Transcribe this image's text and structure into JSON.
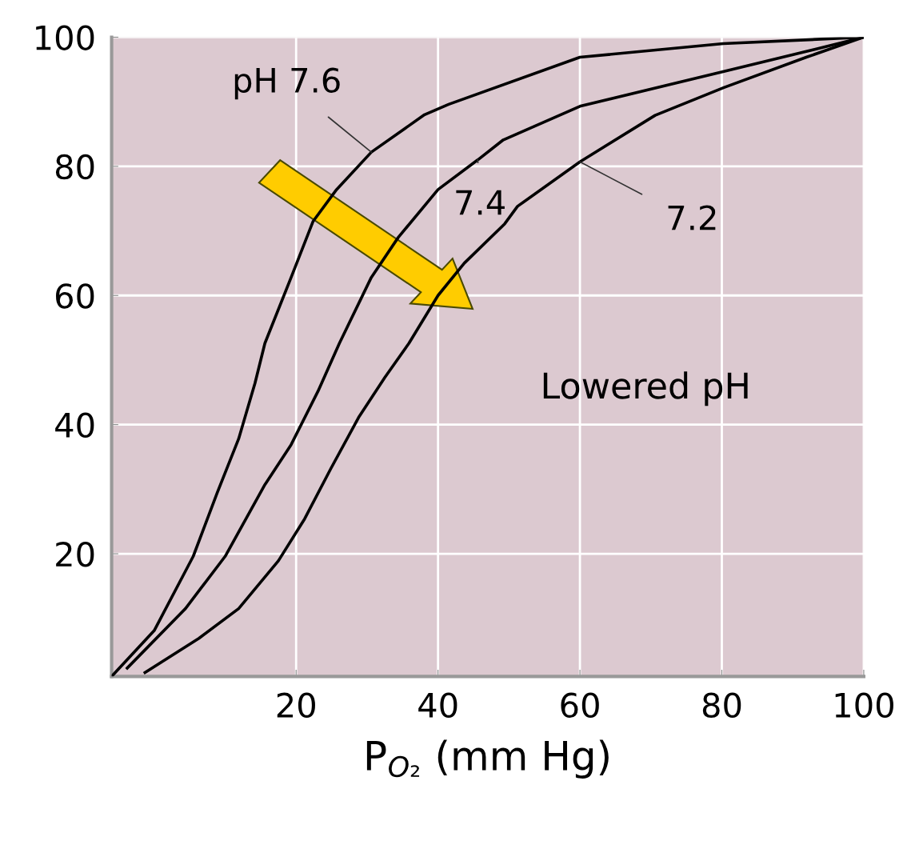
{
  "chart_data": {
    "type": "line",
    "xlabel": "P$_{O₂}$ (mm Hg)",
    "xlim": [
      -6,
      100
    ],
    "ylim": [
      1,
      100
    ],
    "xticks": [
      20,
      40,
      60,
      80,
      100
    ],
    "yticks": [
      20,
      40,
      60,
      80,
      100
    ],
    "grid": true,
    "legend": false,
    "marker": "none",
    "line_style": "solid",
    "annotations": [
      "Lowered pH"
    ],
    "series": [
      {
        "name": "pH 7.6",
        "color": "#000000",
        "x": [
          -6,
          0,
          5.5,
          8.9,
          11.9,
          14.2,
          15.6,
          19.3,
          22.4,
          25.7,
          30.6,
          38.1,
          41.5,
          60,
          80.2,
          100
        ],
        "values": [
          1,
          8.1,
          19.6,
          29.5,
          37.8,
          46.4,
          52.6,
          62.8,
          71.5,
          76.4,
          82.2,
          88.0,
          89.6,
          96.9,
          99.0,
          100
        ]
      },
      {
        "name": "7.4",
        "color": "#000000",
        "x": [
          -3.8,
          4.4,
          10.0,
          15.6,
          19.3,
          23.1,
          26.1,
          30.6,
          34.4,
          40.0,
          45.6,
          49.2,
          60.0,
          80.3,
          91.9,
          100
        ],
        "values": [
          2.3,
          11.5,
          19.6,
          30.7,
          36.9,
          45.2,
          52.6,
          62.8,
          69.0,
          76.4,
          81.0,
          84.1,
          89.3,
          94.7,
          97.8,
          100
        ]
      },
      {
        "name": "7.2",
        "color": "#000000",
        "x": [
          -1.3,
          6.3,
          11.9,
          17.5,
          21.2,
          24.9,
          28.8,
          32.5,
          35.9,
          40.0,
          43.7,
          49.4,
          51.2,
          60.0,
          70.6,
          80.3,
          91.9,
          100
        ],
        "values": [
          1.6,
          6.9,
          11.5,
          18.9,
          25.4,
          33.2,
          41.1,
          47.3,
          52.6,
          60.0,
          65.0,
          71.1,
          73.8,
          80.7,
          87.9,
          92.2,
          96.9,
          100
        ]
      }
    ]
  }
}
